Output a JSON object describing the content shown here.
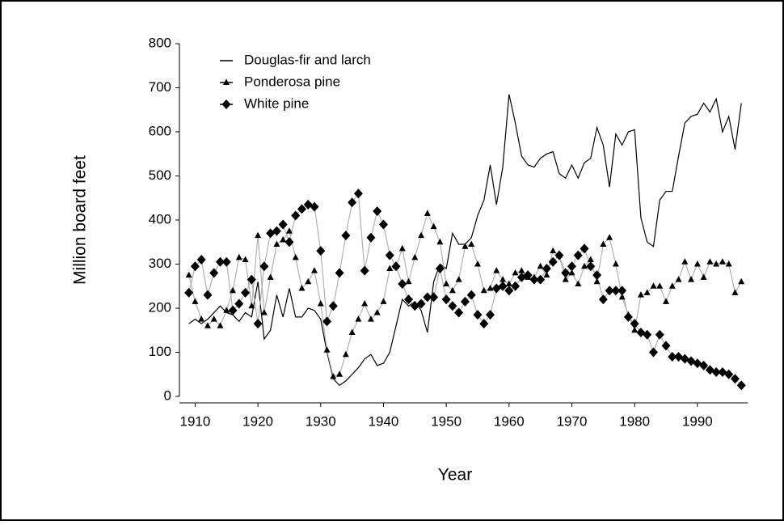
{
  "chart_data": {
    "type": "line",
    "x_label": "Year",
    "y_label": "Million board feet",
    "x": [
      1909,
      1910,
      1911,
      1912,
      1913,
      1914,
      1915,
      1916,
      1917,
      1918,
      1919,
      1920,
      1921,
      1922,
      1923,
      1924,
      1925,
      1926,
      1927,
      1928,
      1929,
      1930,
      1931,
      1932,
      1933,
      1934,
      1935,
      1936,
      1937,
      1938,
      1939,
      1940,
      1941,
      1942,
      1943,
      1944,
      1945,
      1946,
      1947,
      1948,
      1949,
      1950,
      1951,
      1952,
      1953,
      1954,
      1955,
      1956,
      1957,
      1958,
      1959,
      1960,
      1961,
      1962,
      1963,
      1964,
      1965,
      1966,
      1967,
      1968,
      1969,
      1970,
      1971,
      1972,
      1973,
      1974,
      1975,
      1976,
      1977,
      1978,
      1979,
      1980,
      1981,
      1982,
      1983,
      1984,
      1985,
      1986,
      1987,
      1988,
      1989,
      1990,
      1991,
      1992,
      1993,
      1994,
      1995,
      1996,
      1997
    ],
    "series": [
      {
        "name": "Douglas-fir and larch",
        "color": "#000000",
        "marker": "none",
        "values": [
          165,
          175,
          165,
          175,
          190,
          205,
          190,
          185,
          170,
          190,
          180,
          260,
          130,
          150,
          230,
          180,
          245,
          180,
          180,
          200,
          195,
          175,
          100,
          40,
          25,
          35,
          50,
          65,
          85,
          95,
          70,
          75,
          100,
          160,
          220,
          205,
          215,
          195,
          145,
          260,
          300,
          290,
          370,
          345,
          345,
          360,
          410,
          445,
          525,
          435,
          520,
          685,
          620,
          545,
          525,
          520,
          540,
          550,
          555,
          505,
          495,
          525,
          495,
          530,
          540,
          610,
          570,
          475,
          595,
          570,
          600,
          605,
          405,
          350,
          340,
          445,
          465,
          465,
          545,
          620,
          635,
          640,
          665,
          645,
          675,
          600,
          635,
          560,
          665
        ]
      },
      {
        "name": "Ponderosa pine",
        "color": "#000000",
        "line_color": "#b0b0b0",
        "marker": "triangle",
        "values": [
          275,
          215,
          175,
          160,
          175,
          160,
          195,
          240,
          315,
          310,
          205,
          365,
          190,
          270,
          345,
          355,
          375,
          315,
          245,
          260,
          285,
          210,
          105,
          45,
          50,
          95,
          145,
          175,
          210,
          175,
          190,
          215,
          290,
          295,
          335,
          260,
          315,
          365,
          415,
          385,
          350,
          255,
          240,
          265,
          340,
          345,
          300,
          240,
          245,
          285,
          265,
          255,
          280,
          285,
          270,
          270,
          295,
          275,
          330,
          320,
          265,
          280,
          255,
          295,
          310,
          260,
          345,
          360,
          300,
          225,
          185,
          150,
          230,
          235,
          250,
          250,
          215,
          250,
          265,
          305,
          265,
          300,
          270,
          305,
          300,
          305,
          300,
          235,
          260
        ]
      },
      {
        "name": "White pine",
        "color": "#000000",
        "line_color": "#b0b0b0",
        "marker": "diamond",
        "values": [
          235,
          295,
          310,
          230,
          280,
          305,
          305,
          195,
          210,
          235,
          265,
          165,
          295,
          370,
          375,
          390,
          350,
          410,
          425,
          435,
          430,
          330,
          170,
          205,
          280,
          365,
          440,
          460,
          285,
          360,
          420,
          390,
          320,
          295,
          255,
          220,
          205,
          210,
          225,
          225,
          290,
          220,
          205,
          190,
          215,
          230,
          185,
          165,
          185,
          245,
          250,
          240,
          250,
          270,
          275,
          265,
          265,
          290,
          305,
          320,
          280,
          295,
          320,
          335,
          295,
          275,
          220,
          240,
          240,
          240,
          180,
          165,
          145,
          140,
          100,
          140,
          115,
          90,
          90,
          85,
          80,
          75,
          70,
          60,
          55,
          55,
          50,
          40,
          25
        ]
      }
    ],
    "xlim": [
      1907.5,
      1998
    ],
    "xticks": [
      1910,
      1920,
      1930,
      1940,
      1950,
      1960,
      1970,
      1980,
      1990
    ],
    "ylim": [
      0,
      800
    ],
    "yticks": [
      0,
      100,
      200,
      300,
      400,
      500,
      600,
      700,
      800
    ],
    "grid": false,
    "legend": "upper left"
  }
}
